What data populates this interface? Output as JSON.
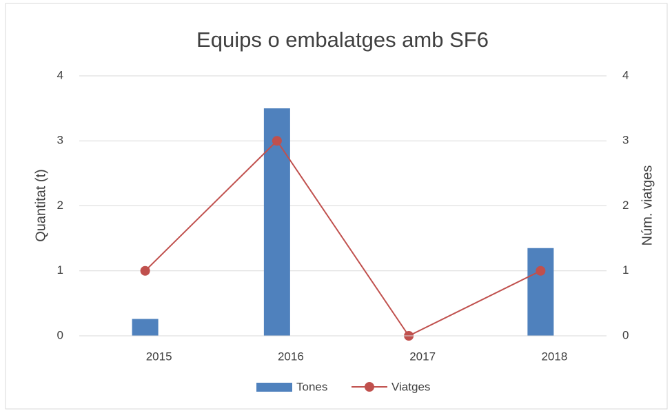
{
  "chart_data": {
    "type": "bar_line",
    "title": "Equips o embalatges amb SF6",
    "y_label": "Quantitat (t)",
    "y2_label": "Núm. viatges",
    "categories": [
      "2015",
      "2016",
      "2017",
      "2018"
    ],
    "series": [
      {
        "name": "Tones",
        "type": "bar",
        "color": "#4f81bd",
        "values": [
          0.26,
          3.5,
          0,
          1.35
        ]
      },
      {
        "name": "Viatges",
        "type": "line",
        "color": "#c0504d",
        "axis": "y2",
        "values": [
          1,
          3,
          0,
          1
        ]
      }
    ],
    "ylim": [
      0,
      4
    ],
    "yticks": [
      0,
      1,
      2,
      3,
      4
    ],
    "y2lim": [
      0,
      4
    ],
    "y2ticks": [
      0,
      1,
      2,
      3,
      4
    ],
    "grid": true,
    "legend": "bottom"
  }
}
